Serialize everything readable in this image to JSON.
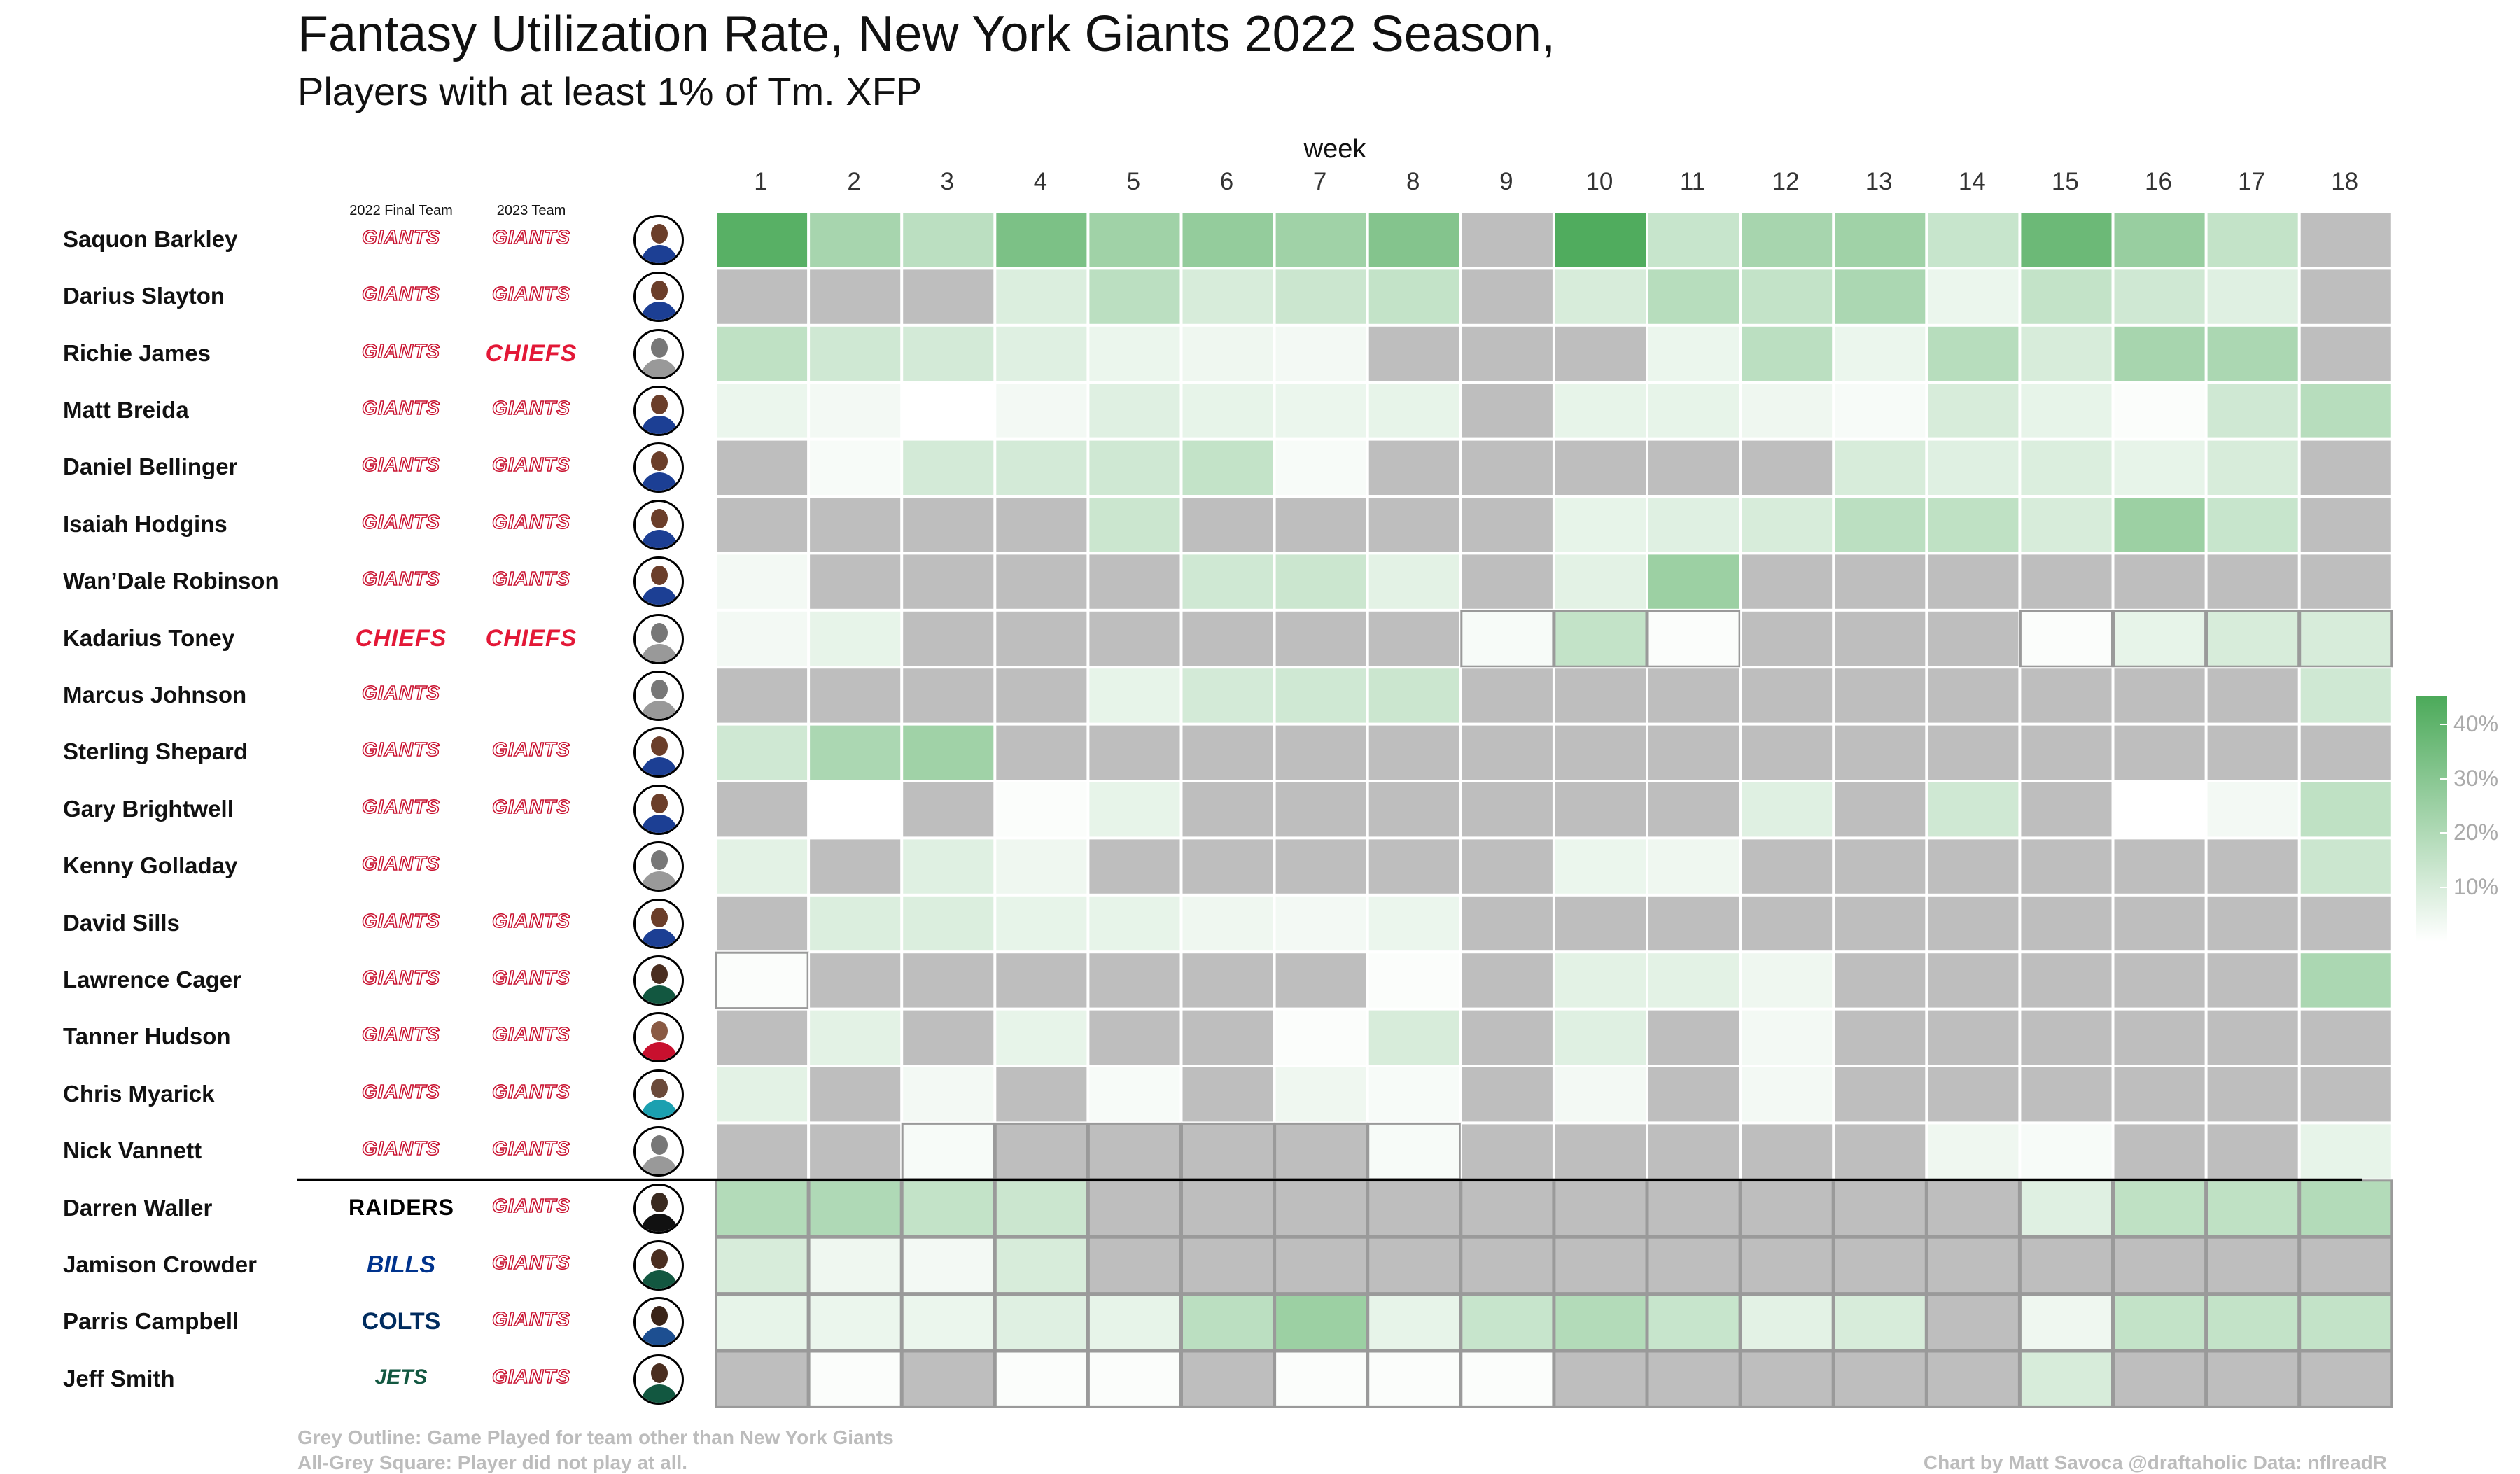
{
  "header": {
    "title": "Fantasy Utilization Rate, New York Giants 2022 Season,",
    "subtitle": "Players with at least 1% of Tm. XFP",
    "final_team_label": "2022 Final Team",
    "team_2023_label": "2023 Team"
  },
  "footer": {
    "note_line1": "Grey Outline: Game Played for team other than New York Giants",
    "note_line2": "All-Grey Square: Player did not play at all.",
    "credit": "Chart by Matt Savoca    @draftaholic    Data: nflreadR"
  },
  "colors": {
    "scale_low": "#ffffff",
    "scale_high": "#4caa5a",
    "missing": "#bebebe",
    "other_team_outline": "#9a9a9a"
  },
  "chart_data": {
    "type": "heatmap",
    "title": "Fantasy Utilization Rate, New York Giants 2022 Season,",
    "subtitle": "Players with at least 1% of Tm. XFP",
    "x_title": "week",
    "weeks": [
      1,
      2,
      3,
      4,
      5,
      6,
      7,
      8,
      9,
      10,
      11,
      12,
      13,
      14,
      15,
      16,
      17,
      18
    ],
    "legend": {
      "ticks": [
        "10%",
        "20%",
        "30%",
        "40%"
      ],
      "tick_values": [
        10,
        20,
        30,
        40
      ],
      "range": [
        0,
        45
      ],
      "placement": "right"
    },
    "players": [
      {
        "name": "Saquon Barkley",
        "final_team": "GIANTS",
        "team_2023": "GIANTS",
        "headshot": "giants",
        "values": [
          42,
          22,
          17,
          33,
          24,
          27,
          24,
          31,
          null,
          44,
          14,
          22,
          24,
          14,
          37,
          26,
          15,
          null
        ],
        "other_team": []
      },
      {
        "name": "Darius Slayton",
        "final_team": "GIANTS",
        "team_2023": "GIANTS",
        "headshot": "giants",
        "values": [
          null,
          null,
          null,
          9,
          17,
          10,
          13,
          15,
          null,
          10,
          18,
          15,
          21,
          5,
          15,
          12,
          8,
          null
        ],
        "other_team": []
      },
      {
        "name": "Richie James",
        "final_team": "GIANTS",
        "team_2023": "CHIEFS",
        "headshot": "gray",
        "values": [
          16,
          12,
          11,
          8,
          5,
          4,
          3,
          null,
          null,
          null,
          5,
          17,
          5,
          18,
          10,
          22,
          21,
          null
        ],
        "other_team": []
      },
      {
        "name": "Matt Breida",
        "final_team": "GIANTS",
        "team_2023": "GIANTS",
        "headshot": "giants",
        "values": [
          5,
          3,
          0,
          3,
          8,
          6,
          5,
          6,
          null,
          6,
          6,
          4,
          2,
          10,
          6,
          1,
          12,
          18
        ],
        "other_team": []
      },
      {
        "name": "Daniel Bellinger",
        "final_team": "GIANTS",
        "team_2023": "GIANTS",
        "headshot": "giants",
        "values": [
          null,
          2,
          11,
          11,
          12,
          15,
          2,
          null,
          null,
          null,
          null,
          null,
          10,
          8,
          9,
          6,
          10,
          null
        ],
        "other_team": []
      },
      {
        "name": "Isaiah Hodgins",
        "final_team": "GIANTS",
        "team_2023": "GIANTS",
        "headshot": "giants",
        "values": [
          null,
          null,
          null,
          null,
          13,
          null,
          null,
          null,
          null,
          6,
          8,
          10,
          17,
          16,
          10,
          25,
          14,
          null
        ],
        "other_team": []
      },
      {
        "name": "Wan'Dale Robinson",
        "final_team": "GIANTS",
        "team_2023": "GIANTS",
        "headshot": "giants",
        "values": [
          3,
          null,
          null,
          null,
          null,
          12,
          13,
          7,
          null,
          7,
          25,
          null,
          null,
          null,
          null,
          null,
          null,
          null
        ],
        "other_team": []
      },
      {
        "name": "Kadarius Toney",
        "final_team": "CHIEFS",
        "team_2023": "CHIEFS",
        "headshot": "gray",
        "values": [
          3,
          6,
          null,
          null,
          null,
          null,
          null,
          null,
          2,
          15,
          1,
          null,
          null,
          null,
          1,
          6,
          10,
          10
        ],
        "other_team": [
          9,
          10,
          11,
          15,
          16,
          17,
          18
        ]
      },
      {
        "name": "Marcus Johnson",
        "final_team": "GIANTS",
        "team_2023": "",
        "headshot": "gray",
        "values": [
          null,
          null,
          null,
          null,
          6,
          11,
          12,
          13,
          null,
          null,
          null,
          null,
          null,
          null,
          null,
          null,
          null,
          12
        ],
        "other_team": []
      },
      {
        "name": "Sterling Shepard",
        "final_team": "GIANTS",
        "team_2023": "GIANTS",
        "headshot": "giants",
        "values": [
          12,
          21,
          24,
          null,
          null,
          null,
          null,
          null,
          null,
          null,
          null,
          null,
          null,
          null,
          null,
          null,
          null,
          null
        ],
        "other_team": []
      },
      {
        "name": "Gary Brightwell",
        "final_team": "GIANTS",
        "team_2023": "GIANTS",
        "headshot": "giants",
        "values": [
          null,
          0,
          null,
          1,
          6,
          null,
          null,
          null,
          null,
          null,
          null,
          8,
          null,
          12,
          null,
          0,
          3,
          16
        ],
        "other_team": []
      },
      {
        "name": "Kenny Golladay",
        "final_team": "GIANTS",
        "team_2023": "",
        "headshot": "gray",
        "values": [
          7,
          null,
          8,
          4,
          null,
          null,
          null,
          null,
          null,
          5,
          4,
          null,
          null,
          null,
          null,
          null,
          null,
          13
        ],
        "other_team": []
      },
      {
        "name": "David Sills",
        "final_team": "GIANTS",
        "team_2023": "GIANTS",
        "headshot": "giants",
        "values": [
          null,
          9,
          9,
          6,
          6,
          4,
          3,
          5,
          null,
          null,
          null,
          null,
          null,
          null,
          null,
          null,
          null,
          null
        ],
        "other_team": []
      },
      {
        "name": "Lawrence Cager",
        "final_team": "GIANTS",
        "team_2023": "GIANTS",
        "headshot": "jets",
        "values": [
          1,
          null,
          null,
          null,
          null,
          null,
          null,
          1,
          null,
          7,
          7,
          4,
          null,
          null,
          null,
          null,
          null,
          21
        ],
        "other_team": [
          1
        ]
      },
      {
        "name": "Tanner Hudson",
        "final_team": "GIANTS",
        "team_2023": "GIANTS",
        "headshot": "red",
        "values": [
          null,
          7,
          null,
          6,
          null,
          null,
          1,
          10,
          null,
          8,
          null,
          3,
          null,
          null,
          null,
          null,
          null,
          null
        ],
        "other_team": []
      },
      {
        "name": "Chris Myarick",
        "final_team": "GIANTS",
        "team_2023": "GIANTS",
        "headshot": "teal",
        "values": [
          7,
          null,
          3,
          null,
          2,
          null,
          4,
          2,
          null,
          3,
          null,
          3,
          null,
          null,
          null,
          null,
          null,
          null
        ],
        "other_team": []
      },
      {
        "name": "Nick Vannett",
        "final_team": "GIANTS",
        "team_2023": "GIANTS",
        "headshot": "gray",
        "values": [
          null,
          null,
          2,
          null,
          null,
          null,
          null,
          2,
          null,
          null,
          null,
          null,
          null,
          4,
          2,
          null,
          null,
          6
        ],
        "other_team": [
          3,
          4,
          5,
          6,
          7,
          8
        ]
      },
      {
        "name": "Darren Waller",
        "final_team": "RAIDERS",
        "team_2023": "GIANTS",
        "headshot": "black",
        "values": [
          19,
          20,
          15,
          13,
          null,
          null,
          null,
          null,
          null,
          null,
          null,
          null,
          null,
          null,
          8,
          16,
          16,
          19
        ],
        "other_team": [
          1,
          2,
          3,
          4,
          5,
          6,
          7,
          8,
          9,
          10,
          11,
          12,
          13,
          14,
          15,
          16,
          17,
          18
        ]
      },
      {
        "name": "Jamison Crowder",
        "final_team": "BILLS",
        "team_2023": "GIANTS",
        "headshot": "jets",
        "values": [
          10,
          4,
          3,
          10,
          null,
          null,
          null,
          null,
          null,
          null,
          null,
          null,
          null,
          null,
          null,
          null,
          null,
          null
        ],
        "other_team": [
          1,
          2,
          3,
          4,
          5,
          6,
          7,
          8,
          9,
          10,
          11,
          12,
          13,
          14,
          15,
          16,
          17,
          18
        ]
      },
      {
        "name": "Parris Campbell",
        "final_team": "COLTS",
        "team_2023": "GIANTS",
        "headshot": "colts",
        "values": [
          6,
          5,
          5,
          8,
          6,
          17,
          25,
          6,
          14,
          19,
          14,
          7,
          10,
          null,
          4,
          15,
          15,
          15
        ],
        "other_team": [
          1,
          2,
          3,
          4,
          5,
          6,
          7,
          8,
          9,
          10,
          11,
          12,
          13,
          14,
          15,
          16,
          17,
          18
        ]
      },
      {
        "name": "Jeff Smith",
        "final_team": "JETS",
        "team_2023": "GIANTS",
        "headshot": "jets",
        "values": [
          null,
          1,
          null,
          1,
          1,
          null,
          1,
          1,
          1,
          null,
          null,
          null,
          null,
          null,
          10,
          null,
          null,
          null
        ],
        "other_team": [
          1,
          2,
          3,
          4,
          5,
          6,
          7,
          8,
          9,
          10,
          11,
          12,
          13,
          14,
          15,
          16,
          17,
          18
        ]
      }
    ]
  }
}
